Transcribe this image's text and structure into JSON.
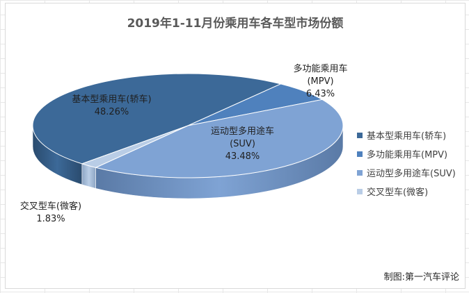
{
  "chart_data": {
    "type": "pie",
    "title": "2019年1-11月份乘用车各车型市场份额",
    "slices": [
      {
        "name": "基本型乘用车(轿车)",
        "line1": "基本型乘用车(轿车)",
        "line2": "",
        "value": 48.26,
        "value_label": "48.26%",
        "color": "#3c6998",
        "side_color": "#2a4b6e"
      },
      {
        "name": "多功能乘用车(MPV)",
        "line1": "多功能乘用车",
        "line2": "(MPV)",
        "value": 6.43,
        "value_label": "6.43%",
        "color": "#4f81bd",
        "side_color": "#365b88"
      },
      {
        "name": "运动型多用途车(SUV)",
        "line1": "运动型多用途车",
        "line2": "(SUV)",
        "value": 43.48,
        "value_label": "43.48%",
        "color": "#7fa3d4",
        "side_color": "#5a7aa6"
      },
      {
        "name": "交叉型车(微客)",
        "line1": "交叉型车(微客)",
        "line2": "",
        "value": 1.83,
        "value_label": "1.83%",
        "color": "#b9cde6",
        "side_color": "#8da5c4"
      }
    ],
    "legend_position": "right"
  },
  "footer": {
    "credit": "制图:第一汽车评论"
  }
}
